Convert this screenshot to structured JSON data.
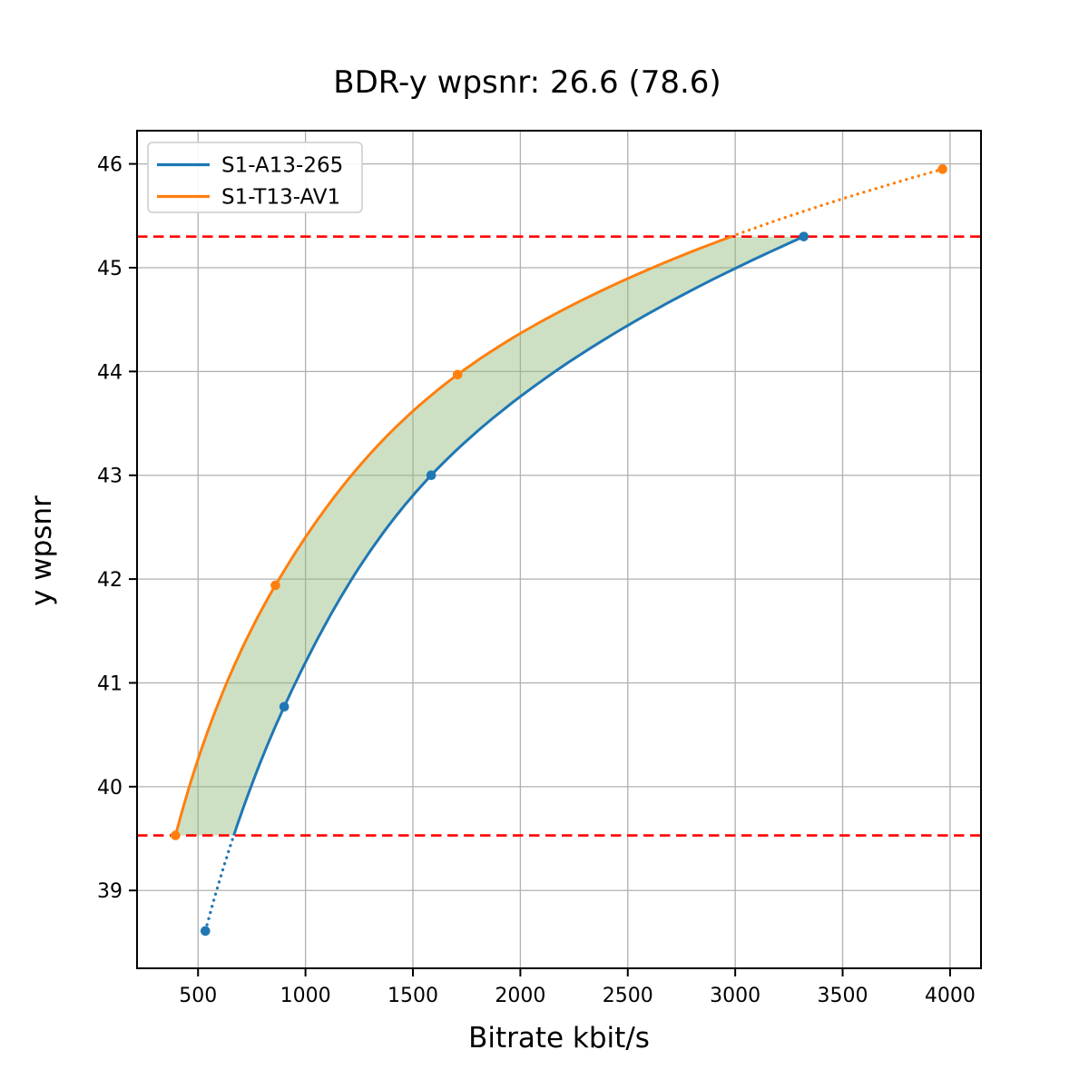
{
  "chart_data": {
    "type": "line",
    "title": "BDR-y wpsnr: 26.6 (78.6)",
    "xlabel": "Bitrate kbit/s",
    "ylabel": "y wpsnr",
    "xlim": [
      216,
      4144
    ],
    "ylim": [
      38.25,
      46.32
    ],
    "xticks": [
      500,
      1000,
      1500,
      2000,
      2500,
      3000,
      3500,
      4000
    ],
    "yticks": [
      39,
      40,
      41,
      42,
      43,
      44,
      45,
      46
    ],
    "grid": true,
    "grid_color": "#b0b0b0",
    "legend_position": "upper left",
    "series": [
      {
        "name": "S1-A13-265",
        "color": "#1f77b4",
        "marker": "circle",
        "x": [
          534,
          901,
          1585,
          3319
        ],
        "y": [
          38.61,
          40.77,
          43.0,
          45.3
        ]
      },
      {
        "name": "S1-T13-AV1",
        "color": "#ff7f0e",
        "marker": "circle",
        "x": [
          395,
          860,
          1708,
          3965
        ],
        "y": [
          39.53,
          41.94,
          43.97,
          45.95
        ]
      }
    ],
    "reference_lines": [
      {
        "y": 45.3,
        "color": "#ff0000",
        "style": "dashed"
      },
      {
        "y": 39.53,
        "color": "#ff0000",
        "style": "dashed"
      }
    ],
    "overlap_interval": [
      39.53,
      45.3
    ],
    "fill_between": {
      "series": [
        "S1-T13-AV1",
        "S1-A13-265"
      ],
      "y_range": [
        39.53,
        45.3
      ],
      "color": "#92ba7c",
      "opacity": 0.45
    }
  }
}
